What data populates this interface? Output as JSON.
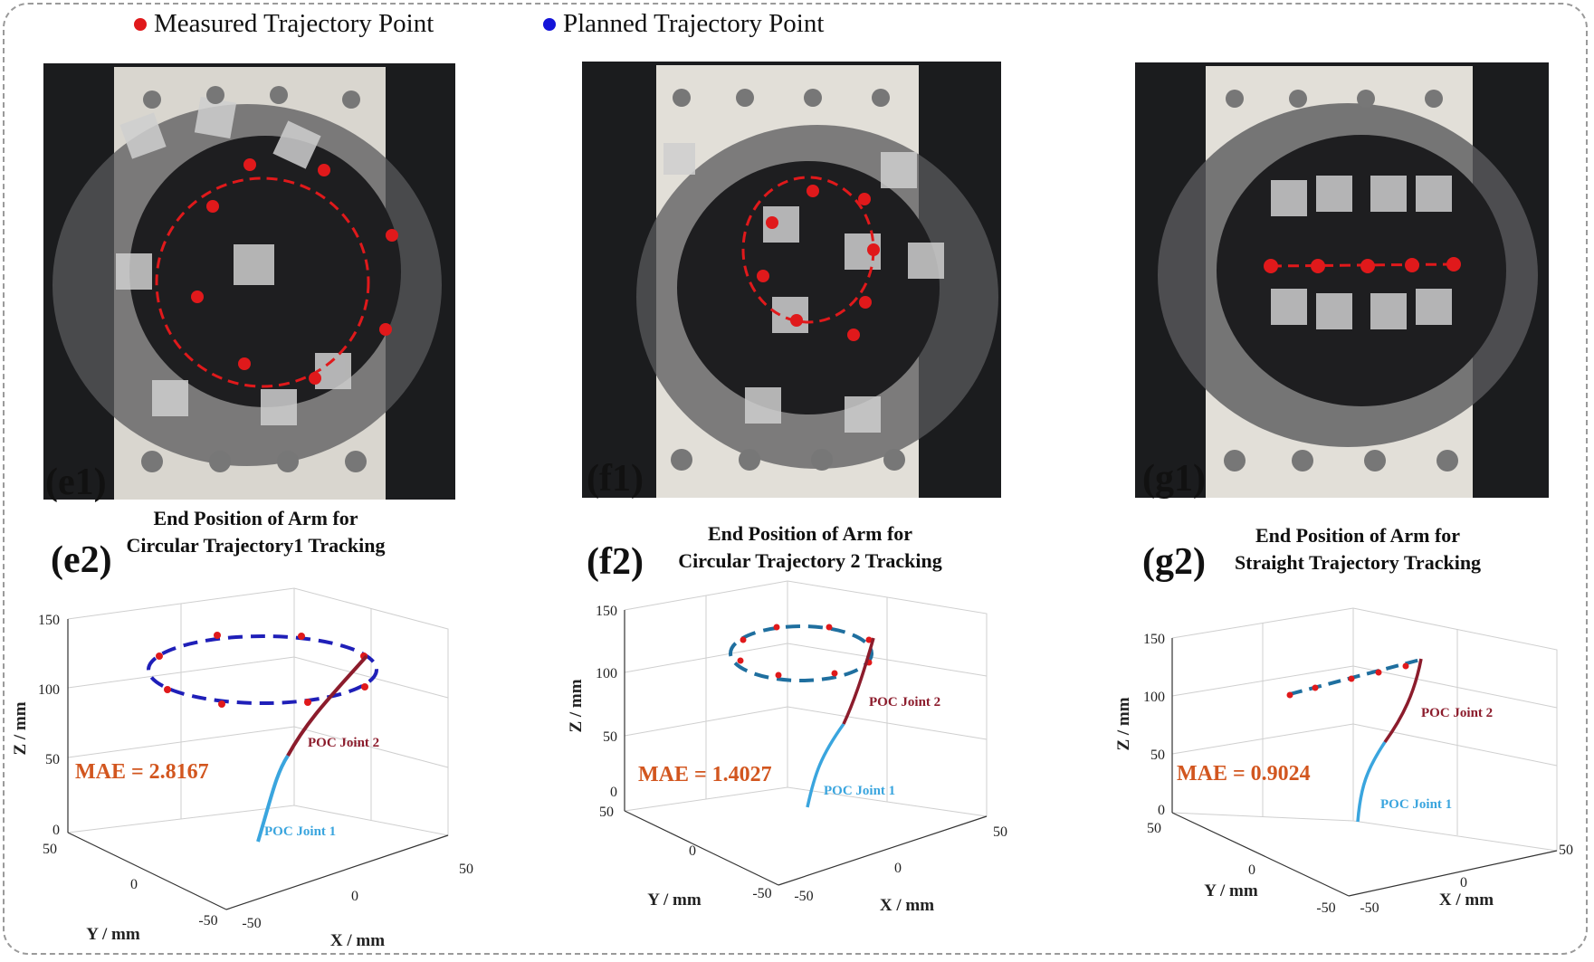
{
  "legend": {
    "measured": {
      "label": "Measured Trajectory Point",
      "color": "#e0191b"
    },
    "planned": {
      "label": "Planned Trajectory Point",
      "color": "#1414d8"
    }
  },
  "photos": [
    {
      "label": "(e1)",
      "description_icon": "robot-arm-photo"
    },
    {
      "label": "(f1)",
      "description_icon": "robot-arm-photo"
    },
    {
      "label": "(g1)",
      "description_icon": "robot-arm-photo"
    }
  ],
  "plots": [
    {
      "label": "(e2)",
      "title_line1": "End Position of Arm for",
      "title_line2": "Circular Trajectory1 Tracking",
      "mae": "MAE = 2.8167",
      "joint1": "POC Joint 1",
      "joint2": "POC Joint 2",
      "zticks": [
        "150",
        "100",
        "50",
        "0"
      ],
      "yticks": [
        "50",
        "0",
        "-50"
      ],
      "xticks": [
        "-50",
        "0",
        "50"
      ],
      "xlabel": "X / mm",
      "ylabel": "Y / mm",
      "zlabel": "Z / mm"
    },
    {
      "label": "(f2)",
      "title_line1": "End Position of Arm for",
      "title_line2": "Circular Trajectory 2 Tracking",
      "mae": "MAE = 1.4027",
      "joint1": "POC Joint 1",
      "joint2": "POC Joint 2",
      "zticks": [
        "150",
        "100",
        "50",
        "0"
      ],
      "yticks": [
        "50",
        "0",
        "-50"
      ],
      "xticks": [
        "-50",
        "0",
        "50"
      ],
      "xlabel": "X / mm",
      "ylabel": "Y / mm",
      "zlabel": "Z / mm"
    },
    {
      "label": "(g2)",
      "title_line1": "End Position of Arm for",
      "title_line2": "Straight Trajectory Tracking",
      "mae": "MAE = 0.9024",
      "joint1": "POC Joint 1",
      "joint2": "POC Joint 2",
      "zticks": [
        "150",
        "100",
        "50",
        "0"
      ],
      "yticks": [
        "50",
        "0",
        "-50"
      ],
      "xticks": [
        "-50",
        "0",
        "50"
      ],
      "xlabel": "X / mm",
      "ylabel": "Y / mm",
      "zlabel": "Z / mm"
    }
  ],
  "colors": {
    "joint1": "#3aa5de",
    "joint2": "#8c1c2c",
    "planned_e": "#1f1fb8",
    "planned_fg": "#1f6f9f",
    "mae": "#d2561f"
  }
}
